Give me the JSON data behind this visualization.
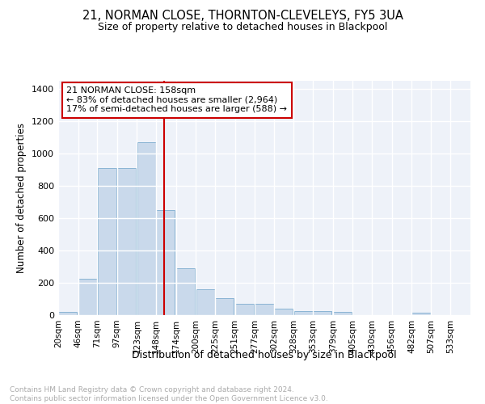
{
  "title": "21, NORMAN CLOSE, THORNTON-CLEVELEYS, FY5 3UA",
  "subtitle": "Size of property relative to detached houses in Blackpool",
  "xlabel": "Distribution of detached houses by size in Blackpool",
  "ylabel": "Number of detached properties",
  "bar_color": "#c9d9eb",
  "bar_edge_color": "#8ab4d4",
  "background_color": "#eef2f9",
  "grid_color": "#ffffff",
  "fig_background": "#ffffff",
  "vline_x": 158,
  "vline_color": "#cc0000",
  "annotation_text": "21 NORMAN CLOSE: 158sqm\n← 83% of detached houses are smaller (2,964)\n17% of semi-detached houses are larger (588) →",
  "annotation_box_color": "#ffffff",
  "annotation_box_edge": "#cc0000",
  "bins_left": [
    20,
    46,
    71,
    97,
    123,
    148,
    174,
    200,
    225,
    251,
    277,
    302,
    328,
    353,
    379,
    405,
    430,
    456,
    482,
    507,
    533
  ],
  "bin_width": 25,
  "heights": [
    20,
    225,
    910,
    910,
    1070,
    650,
    290,
    160,
    105,
    70,
    70,
    40,
    25,
    25,
    20,
    0,
    0,
    0,
    15,
    0,
    0
  ],
  "ylim": [
    0,
    1450
  ],
  "yticks": [
    0,
    200,
    400,
    600,
    800,
    1000,
    1200,
    1400
  ],
  "title_fontsize": 10.5,
  "subtitle_fontsize": 9,
  "ylabel_fontsize": 8.5,
  "xlabel_fontsize": 9,
  "tick_fontsize": 7.5,
  "annot_fontsize": 8,
  "footnote": "Contains HM Land Registry data © Crown copyright and database right 2024.\nContains public sector information licensed under the Open Government Licence v3.0.",
  "footnote_color": "#aaaaaa",
  "footnote_fontsize": 6.5
}
